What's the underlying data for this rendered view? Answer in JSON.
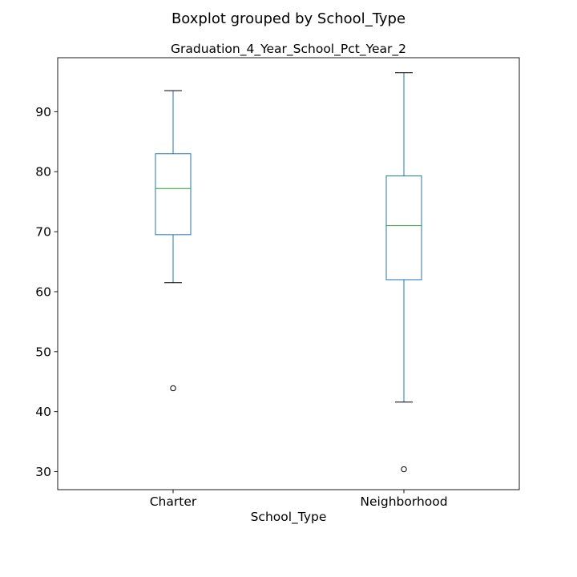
{
  "chart_data": {
    "type": "boxplot",
    "suptitle": "Boxplot grouped by School_Type",
    "title": "Graduation_4_Year_School_Pct_Year_2",
    "xlabel": "School_Type",
    "ylabel": "",
    "ylim": [
      27,
      99
    ],
    "yticks": [
      30,
      40,
      50,
      60,
      70,
      80,
      90
    ],
    "grid": false,
    "legend": "none",
    "colors": {
      "box": "#1f77b4",
      "median": "#2ca02c",
      "whisker": "#1f77b4",
      "cap": "#000000",
      "flier": "#000000"
    },
    "categories": [
      "Charter",
      "Neighborhood"
    ],
    "boxes": [
      {
        "category": "Charter",
        "whislo": 61.5,
        "q1": 69.5,
        "median": 77.2,
        "q3": 83.0,
        "whishi": 93.5,
        "fliers": [
          43.9
        ]
      },
      {
        "category": "Neighborhood",
        "whislo": 41.6,
        "q1": 62.0,
        "median": 71.0,
        "q3": 79.3,
        "whishi": 96.5,
        "fliers": [
          30.4
        ]
      }
    ]
  }
}
